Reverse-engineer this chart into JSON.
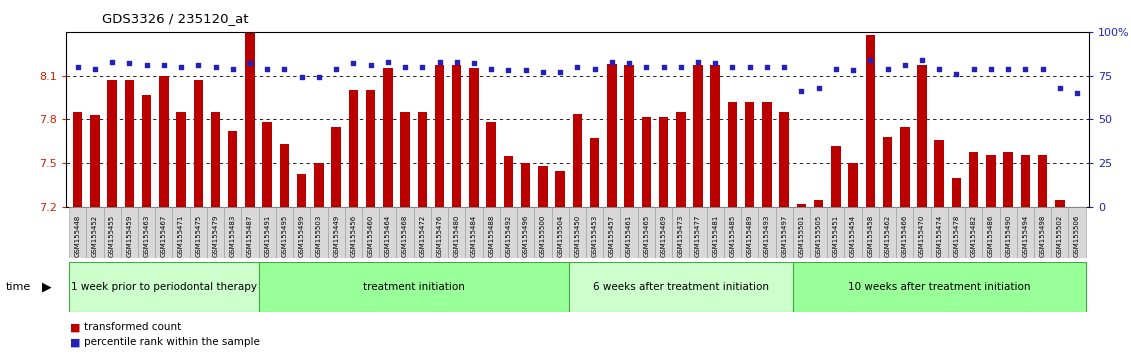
{
  "title": "GDS3326 / 235120_at",
  "ylim_left": [
    7.2,
    8.4
  ],
  "ylim_right": [
    0,
    100
  ],
  "yticks_left": [
    7.2,
    7.5,
    7.8,
    8.1
  ],
  "ytick_right_vals": [
    0,
    25,
    50,
    75,
    100
  ],
  "bar_color": "#bb0000",
  "dot_color": "#2222bb",
  "sample_labels": [
    "GSM155448",
    "GSM155452",
    "GSM155455",
    "GSM155459",
    "GSM155463",
    "GSM155467",
    "GSM155471",
    "GSM155475",
    "GSM155479",
    "GSM155483",
    "GSM155487",
    "GSM155491",
    "GSM155495",
    "GSM155499",
    "GSM155503",
    "GSM155449",
    "GSM155456",
    "GSM155460",
    "GSM155464",
    "GSM155468",
    "GSM155472",
    "GSM155476",
    "GSM155480",
    "GSM155484",
    "GSM155488",
    "GSM155492",
    "GSM155496",
    "GSM155500",
    "GSM155504",
    "GSM155450",
    "GSM155453",
    "GSM155457",
    "GSM155461",
    "GSM155465",
    "GSM155469",
    "GSM155473",
    "GSM155477",
    "GSM155481",
    "GSM155485",
    "GSM155489",
    "GSM155493",
    "GSM155497",
    "GSM155501",
    "GSM155505",
    "GSM155451",
    "GSM155454",
    "GSM155458",
    "GSM155462",
    "GSM155466",
    "GSM155470",
    "GSM155474",
    "GSM155478",
    "GSM155482",
    "GSM155486",
    "GSM155490",
    "GSM155494",
    "GSM155498",
    "GSM155502",
    "GSM155506"
  ],
  "bar_values": [
    7.85,
    7.83,
    8.07,
    8.07,
    7.97,
    8.1,
    7.85,
    8.07,
    7.85,
    7.72,
    8.4,
    7.78,
    7.63,
    7.43,
    7.5,
    7.75,
    8.0,
    8.0,
    8.15,
    7.85,
    7.85,
    8.17,
    8.17,
    8.15,
    7.78,
    7.55,
    7.5,
    7.48,
    7.45,
    7.84,
    7.67,
    8.18,
    8.17,
    7.82,
    7.82,
    7.85,
    8.17,
    8.17,
    7.92,
    7.92,
    7.92,
    7.85,
    7.22,
    7.25,
    7.62,
    7.5,
    8.38,
    7.68,
    7.75,
    8.17,
    7.66,
    7.4,
    7.58,
    7.56,
    7.58,
    7.56,
    7.56,
    7.25,
    7.1
  ],
  "percentile_values": [
    80,
    79,
    83,
    82,
    81,
    81,
    80,
    81,
    80,
    79,
    82,
    79,
    79,
    74,
    74,
    79,
    82,
    81,
    83,
    80,
    80,
    83,
    83,
    82,
    79,
    78,
    78,
    77,
    77,
    80,
    79,
    83,
    82,
    80,
    80,
    80,
    83,
    82,
    80,
    80,
    80,
    80,
    66,
    68,
    79,
    78,
    84,
    79,
    81,
    84,
    79,
    76,
    79,
    79,
    79,
    79,
    79,
    68,
    65
  ],
  "groups": [
    {
      "start": 0,
      "end": 10,
      "label": "1 week prior to periodontal therapy",
      "color": "#ccffcc"
    },
    {
      "start": 11,
      "end": 28,
      "label": "treatment initiation",
      "color": "#99ff99"
    },
    {
      "start": 29,
      "end": 41,
      "label": "6 weeks after treatment initiation",
      "color": "#ccffcc"
    },
    {
      "start": 42,
      "end": 58,
      "label": "10 weeks after treatment initiation",
      "color": "#99ff99"
    }
  ],
  "legend_bar_label": "transformed count",
  "legend_dot_label": "percentile rank within the sample",
  "xtick_label_fontsize": 5.5,
  "left_ytick_color": "#cc2200",
  "right_ytick_color": "#2222bb",
  "spine_color": "#000000",
  "dotted_line_color": "#000000",
  "gray_box_color": "#d8d8d8",
  "gray_box_edge_color": "#999999"
}
